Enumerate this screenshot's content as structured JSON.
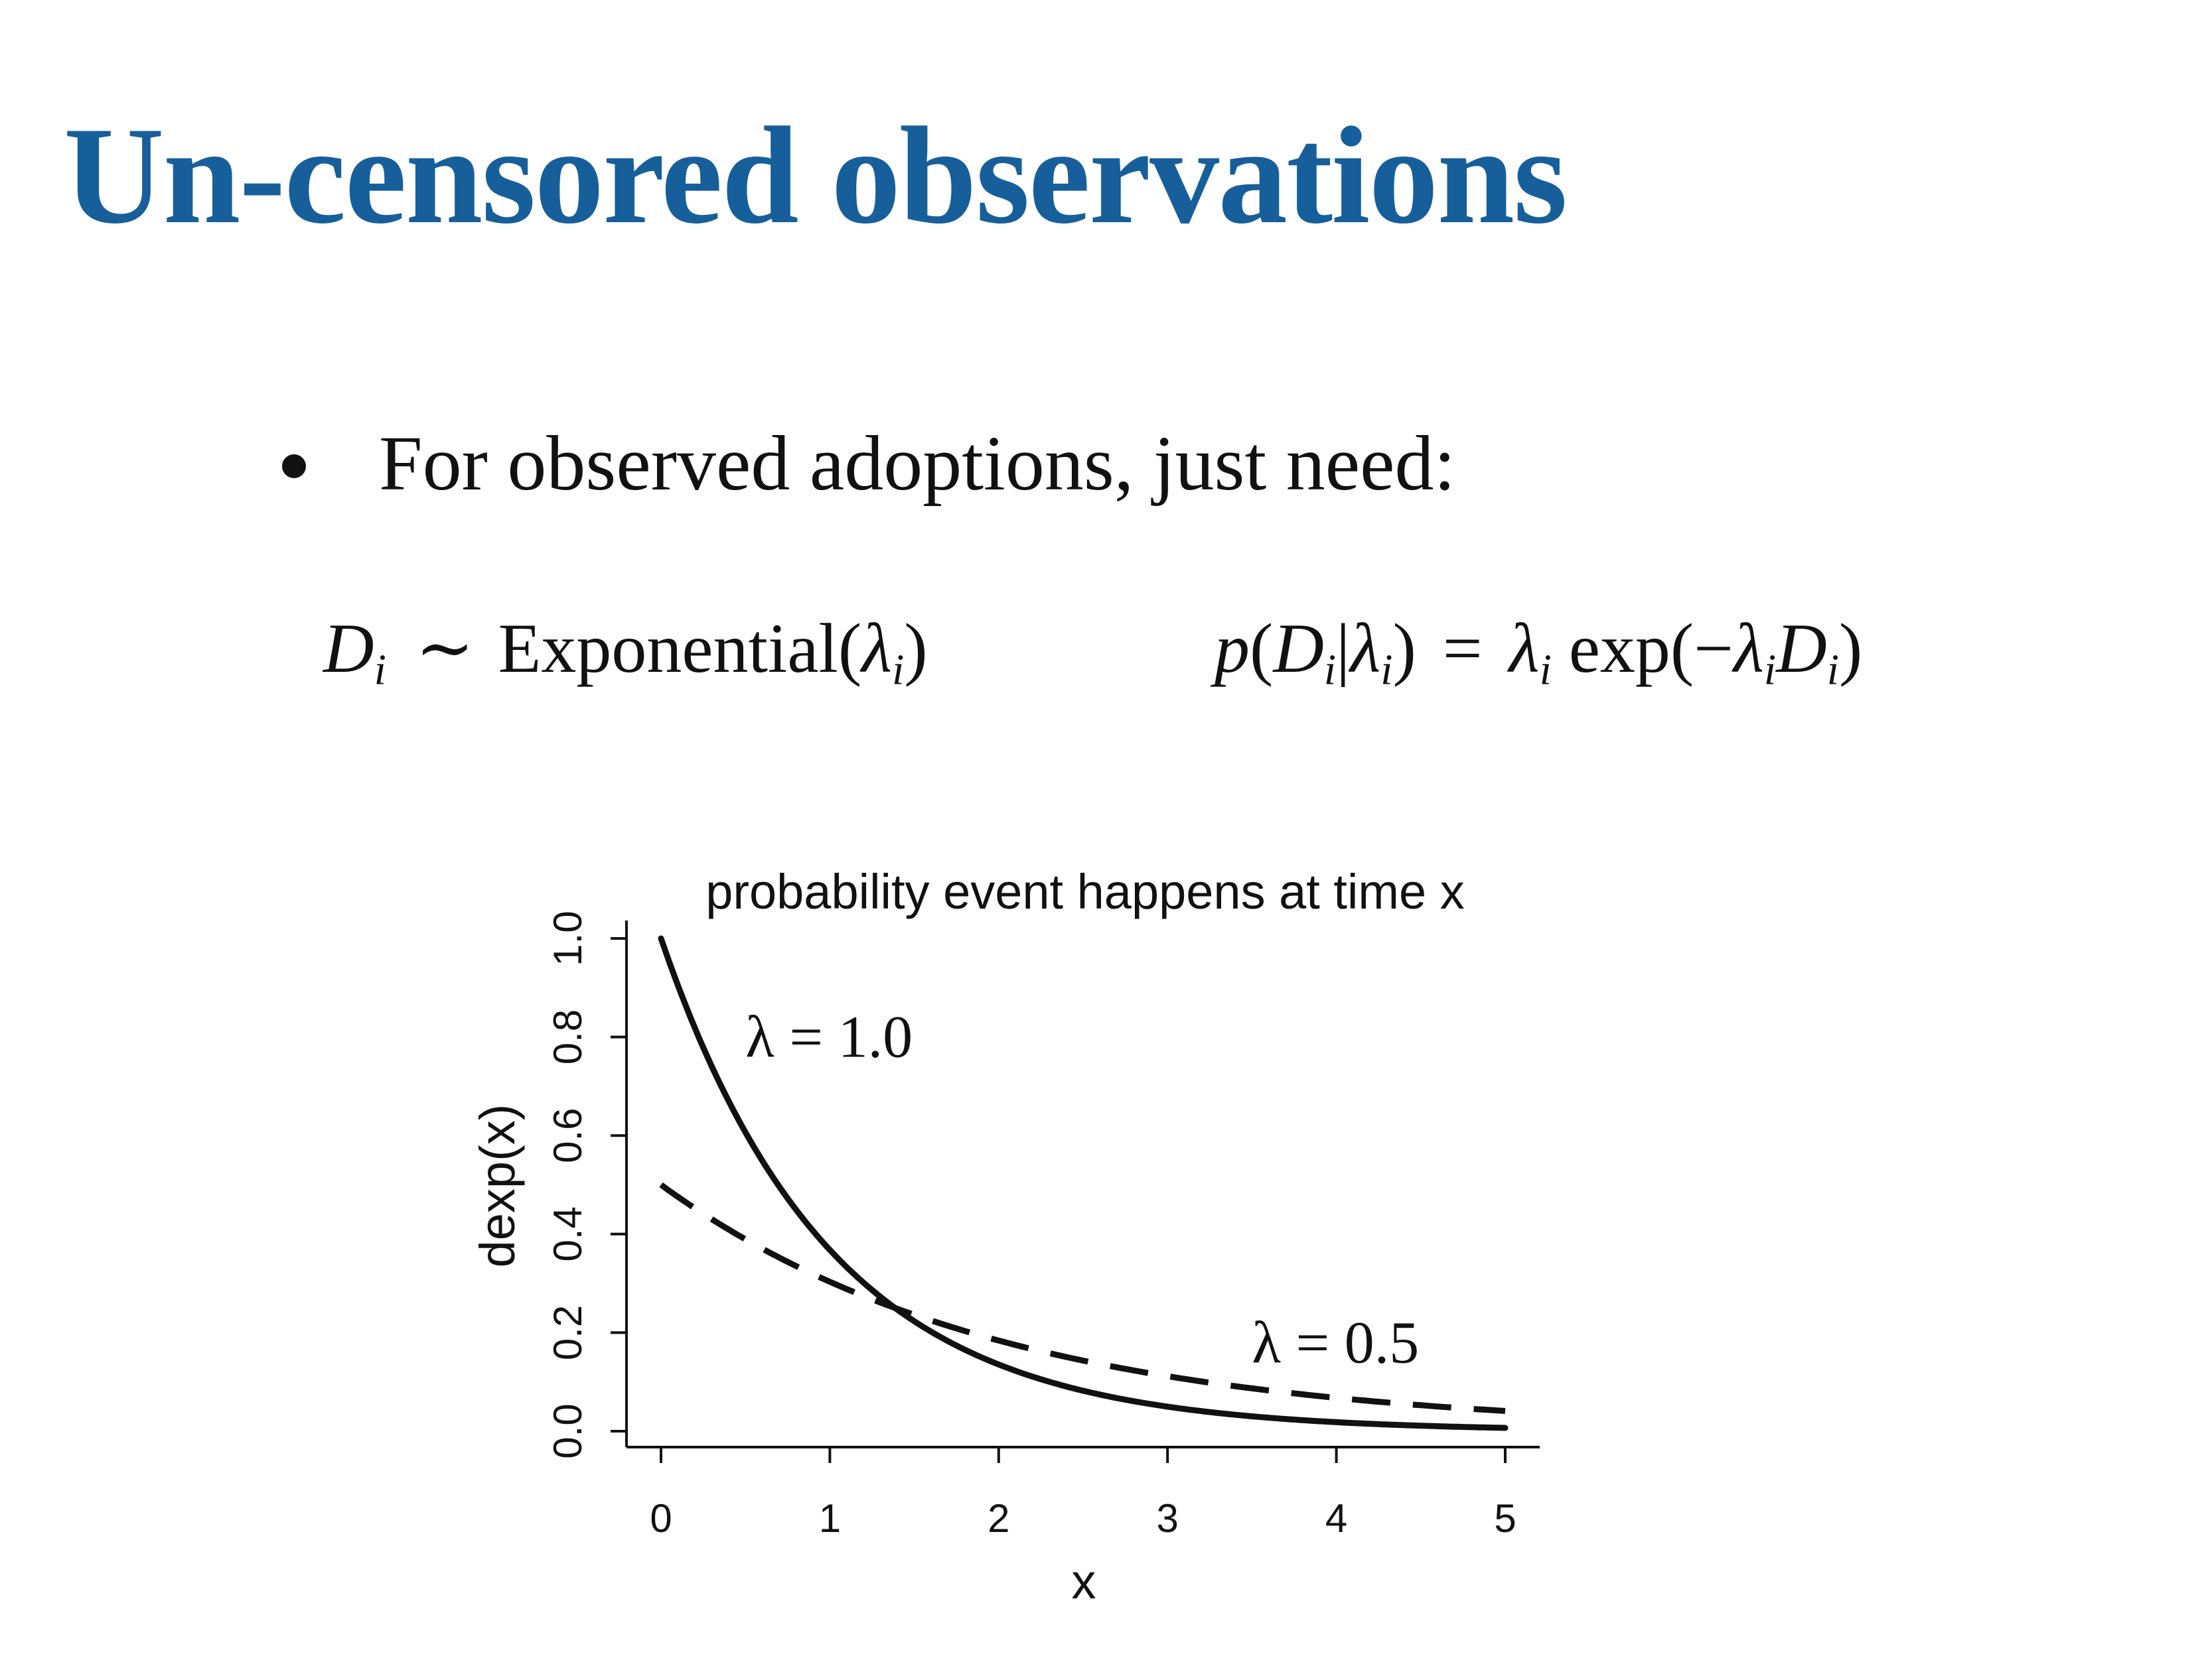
{
  "slide": {
    "title": "Un-censored observations",
    "bullet": "For observed adoptions, just need:",
    "equation_left": {
      "lhs": "D",
      "lhs_sub": "i",
      "relation": "∼",
      "distribution": "Exponential",
      "param": "λ",
      "param_sub": "i"
    },
    "equation_right": {
      "func": "p",
      "var": "D",
      "var_sub": "i",
      "given": "λ",
      "given_sub": "i",
      "equals": "=",
      "rate": "λ",
      "rate_sub": "i",
      "exp": "exp",
      "neg": "−",
      "rate2": "λ",
      "rate2_sub": "i",
      "var2": "D",
      "var2_sub": "i"
    },
    "title_color": "#175f9b"
  },
  "chart_data": {
    "type": "line",
    "title": "probability event happens at time x",
    "xlabel": "x",
    "ylabel": "dexp(x)",
    "xlim": [
      0,
      5
    ],
    "ylim": [
      0,
      1
    ],
    "x_ticks": [
      "0",
      "1",
      "2",
      "3",
      "4",
      "5"
    ],
    "y_ticks": [
      "0.0",
      "0.2",
      "0.4",
      "0.6",
      "0.8",
      "1.0"
    ],
    "grid": false,
    "x": [
      0,
      0.25,
      0.5,
      0.75,
      1,
      1.25,
      1.5,
      1.75,
      2,
      2.25,
      2.5,
      2.75,
      3,
      3.25,
      3.5,
      3.75,
      4,
      4.25,
      4.5,
      4.75,
      5
    ],
    "series": [
      {
        "rate": 1.0,
        "style": "solid",
        "values": [
          1.0,
          0.779,
          0.607,
          0.472,
          0.368,
          0.287,
          0.223,
          0.174,
          0.135,
          0.105,
          0.082,
          0.064,
          0.05,
          0.039,
          0.03,
          0.024,
          0.018,
          0.014,
          0.011,
          0.009,
          0.007
        ]
      },
      {
        "rate": 0.5,
        "style": "dashed",
        "values": [
          0.5,
          0.441,
          0.389,
          0.344,
          0.303,
          0.268,
          0.236,
          0.208,
          0.184,
          0.162,
          0.143,
          0.126,
          0.112,
          0.098,
          0.087,
          0.077,
          0.068,
          0.06,
          0.053,
          0.046,
          0.041
        ]
      }
    ],
    "annotations": [
      {
        "text": "λ = 1.0",
        "x": 0.5,
        "y": 0.8
      },
      {
        "text": "λ = 0.5",
        "x": 3.5,
        "y": 0.18
      }
    ]
  }
}
